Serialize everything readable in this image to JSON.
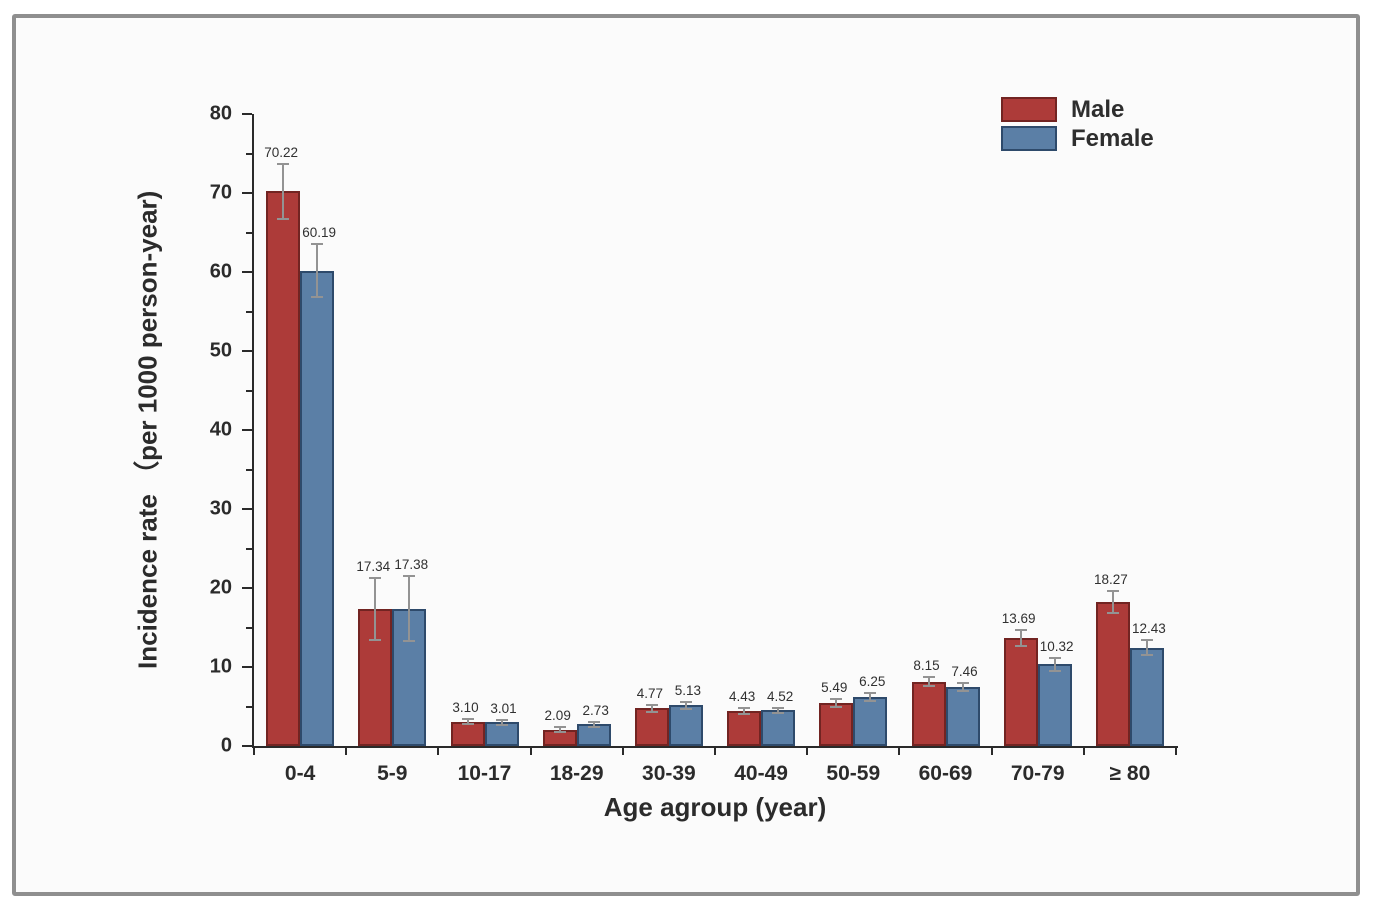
{
  "chart_data": {
    "type": "bar",
    "title": "",
    "xlabel": "Age agroup (year)",
    "ylabel": "Incidence rate （per 1000 person-year)",
    "ylim": [
      0,
      80
    ],
    "yticks": [
      0,
      10,
      20,
      30,
      40,
      50,
      60,
      70,
      80
    ],
    "y_minor_step": 5,
    "grid": "off",
    "legend_position": "top-right",
    "categories": [
      "0-4",
      "5-9",
      "10-17",
      "18-29",
      "30-39",
      "40-49",
      "50-59",
      "60-69",
      "70-79",
      "≥ 80"
    ],
    "series": [
      {
        "name": "Male",
        "color": "#ad3b39",
        "border_color": "#722422",
        "values": [
          70.22,
          17.34,
          3.1,
          2.09,
          4.77,
          4.43,
          5.49,
          8.15,
          13.69,
          18.27
        ],
        "labels": [
          "70.22",
          "17.34",
          "3.10",
          "2.09",
          "4.77",
          "4.43",
          "5.49",
          "8.15",
          "13.69",
          "18.27"
        ],
        "errors": [
          3.5,
          3.9,
          0.35,
          0.3,
          0.45,
          0.35,
          0.5,
          0.6,
          1.0,
          1.4
        ]
      },
      {
        "name": "Female",
        "color": "#5b7fa6",
        "border_color": "#2e4a6b",
        "values": [
          60.19,
          17.38,
          3.01,
          2.73,
          5.13,
          4.52,
          6.25,
          7.46,
          10.32,
          12.43
        ],
        "labels": [
          "60.19",
          "17.38",
          "3.01",
          "2.73",
          "5.13",
          "4.52",
          "6.25",
          "7.46",
          "10.32",
          "12.43"
        ],
        "errors": [
          3.3,
          4.1,
          0.3,
          0.35,
          0.5,
          0.35,
          0.5,
          0.55,
          0.8,
          0.95
        ]
      }
    ],
    "error_bar_color": "#939393",
    "axis_color": "#2a2a2a",
    "frame_border_color": "#8f8f8f",
    "background_color": "#fbfbfb"
  }
}
